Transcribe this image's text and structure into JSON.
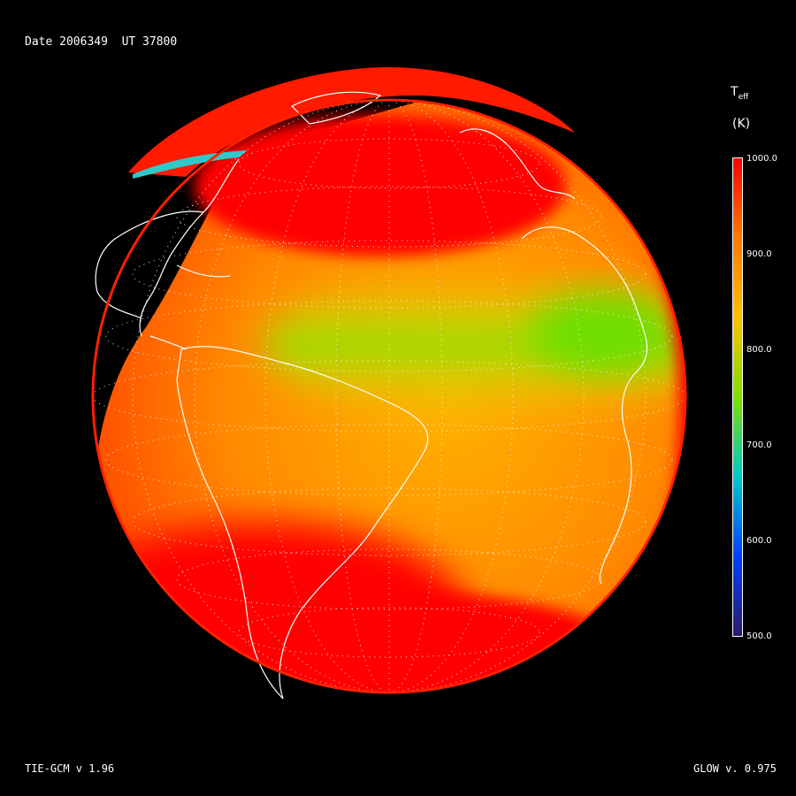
{
  "header": {
    "date_text": "Date 2006349  UT 37800"
  },
  "footer": {
    "model_version": "TIE-GCM v 1.96",
    "glow_version": "GLOW v. 0.975"
  },
  "colorbar": {
    "title": "T",
    "title_sub": "eff",
    "units": "(K)",
    "ticks": [
      "1000.0",
      "900.0",
      "800.0",
      "700.0",
      "600.0",
      "500.0"
    ],
    "range": [
      500,
      1000
    ],
    "colors": [
      "#ff0000",
      "#ff7a00",
      "#ffc000",
      "#7fe000",
      "#00c8c8",
      "#0040ff",
      "#2a1a6a"
    ]
  },
  "map": {
    "projection": "orthographic",
    "variable": "effective temperature",
    "units": "K"
  }
}
